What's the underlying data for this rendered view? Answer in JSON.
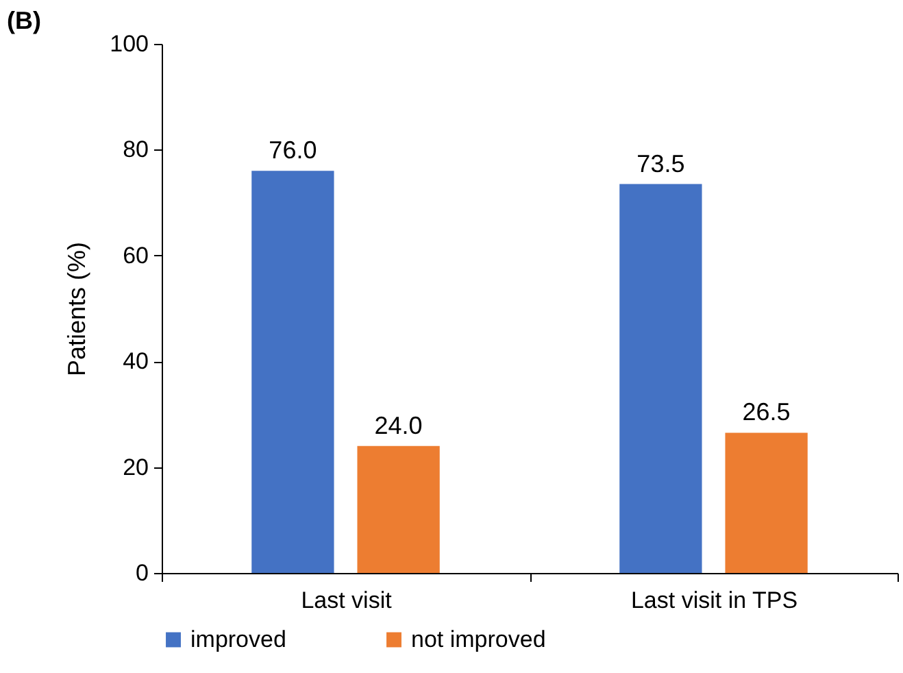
{
  "chart_data": {
    "type": "bar",
    "title": "(B)",
    "ylabel": "Patients (%)",
    "categories": [
      "Last visit",
      "Last visit in TPS"
    ],
    "series": [
      {
        "name": "improved",
        "color": "#4472c4",
        "values": [
          76.0,
          73.5
        ],
        "value_labels": [
          "76.0",
          "73.5"
        ]
      },
      {
        "name": "not improved",
        "color": "#ed7d31",
        "values": [
          24.0,
          26.5
        ],
        "value_labels": [
          "24.0",
          "26.5"
        ]
      }
    ],
    "ylim": [
      0,
      100
    ],
    "yticks": [
      0,
      20,
      40,
      60,
      80,
      100
    ],
    "legend": "bottom"
  }
}
